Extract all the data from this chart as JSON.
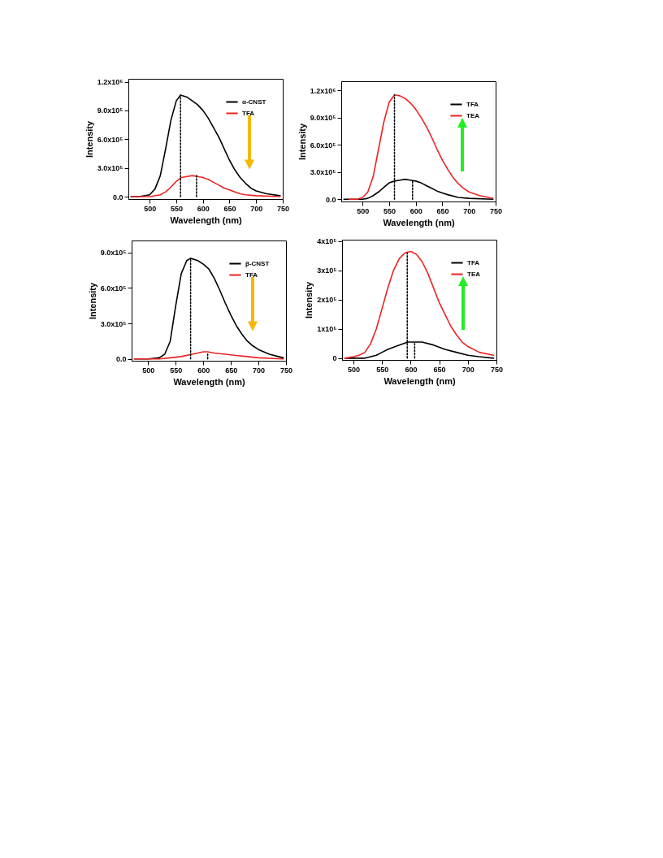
{
  "chart_data": [
    {
      "type": "line",
      "xlabel": "Wavelength (nm)",
      "ylabel": "Intensity",
      "xlim": [
        460,
        750
      ],
      "xticks": [
        500,
        550,
        600,
        650,
        700,
        750
      ],
      "ylim": [
        -25000,
        1230000
      ],
      "yticks": [
        {
          "value": 0,
          "label": "0.0"
        },
        {
          "value": 300000,
          "label": "3.0x10⁵"
        },
        {
          "value": 600000,
          "label": "6.0x10⁵"
        },
        {
          "value": 900000,
          "label": "9.0x10⁵"
        },
        {
          "value": 1200000,
          "label": "1.2x10⁶"
        }
      ],
      "legend": "top right",
      "series": [
        {
          "name": "α-CNST",
          "color": "#000000",
          "x": [
            465,
            480,
            500,
            510,
            520,
            530,
            540,
            550,
            558,
            570,
            580,
            590,
            600,
            610,
            620,
            630,
            640,
            650,
            660,
            670,
            680,
            690,
            700,
            720,
            745
          ],
          "values": [
            0,
            0,
            20000,
            80000,
            220000,
            500000,
            800000,
            1000000,
            1060000,
            1040000,
            1000000,
            960000,
            900000,
            820000,
            720000,
            620000,
            500000,
            380000,
            280000,
            200000,
            140000,
            90000,
            60000,
            30000,
            10000
          ]
        },
        {
          "name": "TFA",
          "color": "#ee2222",
          "x": [
            465,
            500,
            520,
            530,
            540,
            550,
            560,
            570,
            580,
            590,
            600,
            610,
            620,
            630,
            640,
            650,
            660,
            670,
            680,
            700,
            745
          ],
          "values": [
            0,
            0,
            20000,
            50000,
            100000,
            160000,
            200000,
            210000,
            220000,
            210000,
            200000,
            180000,
            150000,
            120000,
            90000,
            70000,
            50000,
            30000,
            20000,
            10000,
            0
          ]
        },
        {
          "color": "#000000",
          "line_style": "dotted",
          "x": [
            558,
            558
          ],
          "values": [
            0,
            1060000
          ]
        },
        {
          "color": "#000000",
          "line_style": "dotted",
          "x": [
            588,
            588
          ],
          "values": [
            0,
            220000
          ]
        }
      ]
    },
    {
      "type": "line",
      "xlabel": "Wavelength (nm)",
      "ylabel": "Intensity",
      "xlim": [
        460,
        750
      ],
      "xticks": [
        500,
        550,
        600,
        650,
        700,
        750
      ],
      "ylim": [
        -25000,
        1300000
      ],
      "yticks": [
        {
          "value": 0,
          "label": "0.0"
        },
        {
          "value": 300000,
          "label": "3.0x10⁵"
        },
        {
          "value": 600000,
          "label": "6.0x10⁵"
        },
        {
          "value": 900000,
          "label": "9.0x10⁵"
        },
        {
          "value": 1200000,
          "label": "1.2x10⁶"
        }
      ],
      "legend": "top right",
      "series": [
        {
          "name": "TFA",
          "color": "#000000",
          "x": [
            465,
            500,
            510,
            520,
            530,
            540,
            550,
            560,
            570,
            580,
            590,
            600,
            610,
            620,
            630,
            640,
            650,
            660,
            680,
            700,
            745
          ],
          "values": [
            0,
            0,
            10000,
            40000,
            80000,
            130000,
            180000,
            200000,
            210000,
            220000,
            210000,
            200000,
            180000,
            150000,
            120000,
            90000,
            70000,
            50000,
            20000,
            10000,
            0
          ]
        },
        {
          "name": "TEA",
          "color": "#ee2222",
          "x": [
            475,
            490,
            500,
            510,
            520,
            530,
            540,
            550,
            560,
            570,
            580,
            590,
            600,
            610,
            620,
            630,
            640,
            650,
            660,
            670,
            680,
            690,
            700,
            720,
            745
          ],
          "values": [
            0,
            0,
            20000,
            80000,
            250000,
            550000,
            850000,
            1070000,
            1150000,
            1140000,
            1110000,
            1060000,
            990000,
            900000,
            800000,
            680000,
            550000,
            430000,
            330000,
            240000,
            170000,
            120000,
            80000,
            40000,
            10000
          ]
        },
        {
          "color": "#000000",
          "line_style": "dotted",
          "x": [
            560,
            560
          ],
          "values": [
            0,
            1150000
          ]
        },
        {
          "color": "#000000",
          "line_style": "dotted",
          "x": [
            594,
            594
          ],
          "values": [
            0,
            210000
          ]
        }
      ]
    },
    {
      "type": "line",
      "xlabel": "Wavelength (nm)",
      "ylabel": "Intensity",
      "xlim": [
        470,
        750
      ],
      "xticks": [
        500,
        550,
        600,
        650,
        700,
        750
      ],
      "ylim": [
        -15000,
        1000000
      ],
      "yticks": [
        {
          "value": 0,
          "label": "0.0"
        },
        {
          "value": 300000,
          "label": "3.0x10⁵"
        },
        {
          "value": 600000,
          "label": "6.0x10⁵"
        },
        {
          "value": 900000,
          "label": "9.0x10⁵"
        }
      ],
      "legend": "top right",
      "series": [
        {
          "name": "β-CNST",
          "color": "#000000",
          "x": [
            475,
            500,
            520,
            530,
            540,
            550,
            560,
            570,
            577,
            590,
            600,
            610,
            620,
            630,
            640,
            650,
            660,
            670,
            680,
            690,
            700,
            720,
            745
          ],
          "values": [
            0,
            0,
            10000,
            40000,
            150000,
            450000,
            720000,
            830000,
            850000,
            830000,
            800000,
            760000,
            680000,
            580000,
            470000,
            370000,
            280000,
            210000,
            150000,
            110000,
            80000,
            40000,
            10000
          ]
        },
        {
          "name": "TFA",
          "color": "#ee2222",
          "x": [
            475,
            520,
            540,
            560,
            580,
            600,
            608,
            620,
            640,
            660,
            680,
            700,
            745
          ],
          "values": [
            0,
            0,
            10000,
            20000,
            40000,
            60000,
            60000,
            50000,
            40000,
            30000,
            20000,
            10000,
            0
          ]
        },
        {
          "color": "#000000",
          "line_style": "dotted",
          "x": [
            577,
            577
          ],
          "values": [
            0,
            850000
          ]
        },
        {
          "color": "#000000",
          "line_style": "dotted",
          "x": [
            608,
            608
          ],
          "values": [
            0,
            50000
          ]
        }
      ]
    },
    {
      "type": "line",
      "xlabel": "Wavelength (nm)",
      "ylabel": "Intensity",
      "xlim": [
        480,
        750
      ],
      "xticks": [
        500,
        550,
        600,
        650,
        700,
        750
      ],
      "ylim": [
        -6000,
        405000
      ],
      "yticks": [
        {
          "value": 0,
          "label": "0"
        },
        {
          "value": 100000,
          "label": "1x10⁵"
        },
        {
          "value": 200000,
          "label": "2x10⁵"
        },
        {
          "value": 300000,
          "label": "3x10⁵"
        },
        {
          "value": 400000,
          "label": "4x10⁵"
        }
      ],
      "legend": "top right",
      "series": [
        {
          "name": "TFA",
          "color": "#000000",
          "x": [
            485,
            520,
            530,
            540,
            550,
            560,
            580,
            595,
            608,
            620,
            640,
            660,
            680,
            700,
            720,
            745
          ],
          "values": [
            0,
            0,
            5000,
            10000,
            20000,
            30000,
            45000,
            55000,
            55000,
            55000,
            45000,
            30000,
            20000,
            10000,
            5000,
            0
          ]
        },
        {
          "name": "TEA",
          "color": "#ee2222",
          "x": [
            485,
            500,
            510,
            520,
            530,
            540,
            550,
            560,
            570,
            580,
            590,
            600,
            610,
            620,
            630,
            640,
            650,
            660,
            670,
            680,
            690,
            700,
            720,
            745
          ],
          "values": [
            0,
            5000,
            10000,
            20000,
            50000,
            100000,
            170000,
            240000,
            300000,
            340000,
            360000,
            365000,
            355000,
            330000,
            290000,
            240000,
            190000,
            150000,
            110000,
            80000,
            55000,
            40000,
            20000,
            10000
          ]
        },
        {
          "color": "#000000",
          "line_style": "dotted",
          "x": [
            594,
            594
          ],
          "values": [
            0,
            360000
          ]
        },
        {
          "color": "#000000",
          "line_style": "dotted",
          "x": [
            607,
            607
          ],
          "values": [
            0,
            55000
          ]
        }
      ]
    }
  ]
}
